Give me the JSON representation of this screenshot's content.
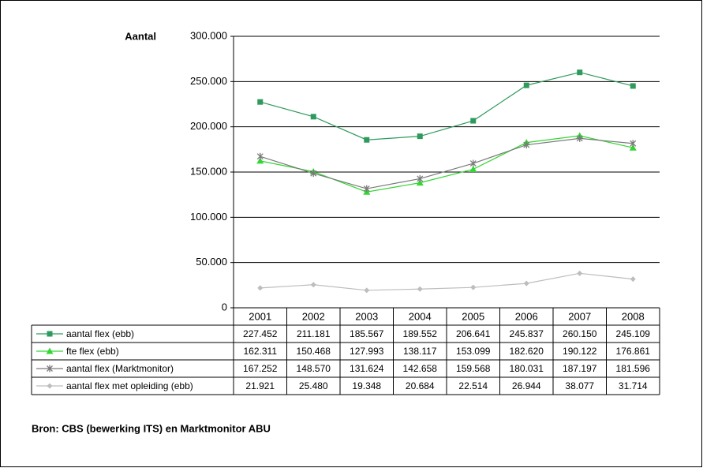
{
  "chart_data": {
    "type": "line",
    "y_label": "Aantal",
    "source": "Bron: CBS (bewerking ITS) en Marktmonitor ABU",
    "categories": [
      "2001",
      "2002",
      "2003",
      "2004",
      "2005",
      "2006",
      "2007",
      "2008"
    ],
    "ylim": [
      0,
      300000
    ],
    "yticks": [
      0,
      {
        "value": 50000,
        "label": "50.000"
      },
      {
        "value": 100000,
        "label": "100.000"
      },
      {
        "value": 150000,
        "label": "150.000"
      },
      {
        "value": 200000,
        "label": "200.000"
      },
      {
        "value": 250000,
        "label": "250.000"
      },
      {
        "value": 300000,
        "label": "300.000"
      }
    ],
    "grid": true,
    "series": [
      {
        "name": "aantal flex (ebb)",
        "color": "#2e9a5c",
        "marker": "square",
        "values": [
          227452,
          211181,
          185567,
          189552,
          206641,
          245837,
          260150,
          245109
        ],
        "value_labels": [
          "227.452",
          "211.181",
          "185.567",
          "189.552",
          "206.641",
          "245.837",
          "260.150",
          "245.109"
        ]
      },
      {
        "name": "fte flex (ebb)",
        "color": "#33d633",
        "marker": "triangle",
        "values": [
          162311,
          150468,
          127993,
          138117,
          153099,
          182620,
          190122,
          176861
        ],
        "value_labels": [
          "162.311",
          "150.468",
          "127.993",
          "138.117",
          "153.099",
          "182.620",
          "190.122",
          "176.861"
        ]
      },
      {
        "name": "aantal flex (Marktmonitor)",
        "color": "#7a7a7a",
        "marker": "star",
        "values": [
          167252,
          148570,
          131624,
          142658,
          159568,
          180031,
          187197,
          181596
        ],
        "value_labels": [
          "167.252",
          "148.570",
          "131.624",
          "142.658",
          "159.568",
          "180.031",
          "187.197",
          "181.596"
        ]
      },
      {
        "name": "aantal flex met opleiding (ebb)",
        "color": "#bdbdbd",
        "marker": "diamond",
        "values": [
          21921,
          25480,
          19348,
          20684,
          22514,
          26944,
          38077,
          31714
        ],
        "value_labels": [
          "21.921",
          "25.480",
          "19.348",
          "20.684",
          "22.514",
          "26.944",
          "38.077",
          "31.714"
        ]
      }
    ]
  }
}
